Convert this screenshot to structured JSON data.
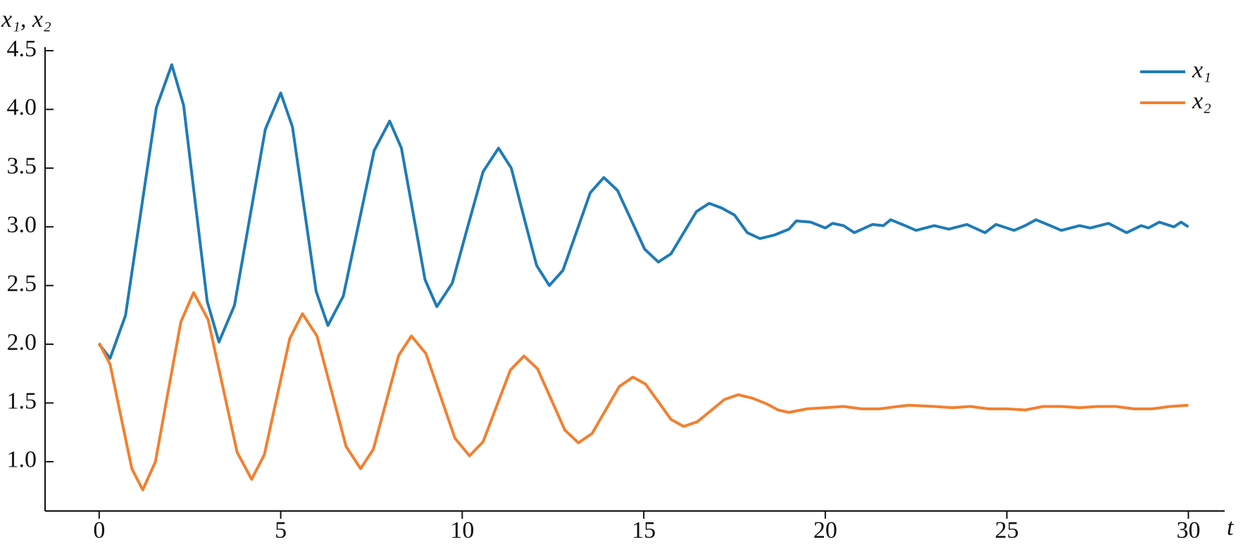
{
  "chart_data": {
    "type": "line",
    "ylabel": "x₁, x₂",
    "xlabel": "t",
    "xlim": [
      -1.49,
      31.0
    ],
    "ylim": [
      0.58,
      4.53
    ],
    "xticks": [
      0,
      5,
      10,
      15,
      20,
      25,
      30
    ],
    "yticks": [
      {
        "value": 1.0,
        "label": "1.0"
      },
      1.5,
      {
        "value": 2.0,
        "label": "2.0"
      },
      2.5,
      {
        "value": 3.0,
        "label": "3.0"
      },
      3.5,
      {
        "value": 4.0,
        "label": "4.0"
      },
      4.5
    ],
    "legend": "upper right",
    "series": [
      {
        "name": "x₁",
        "color": "#1f7bb6",
        "x": [
          0,
          0.3,
          0.725,
          1.15,
          1.575,
          2.0,
          2.325,
          2.65,
          2.975,
          3.3,
          3.725,
          4.15,
          4.575,
          5.0,
          5.325,
          5.65,
          5.975,
          6.3,
          6.725,
          7.15,
          7.575,
          8.0,
          8.325,
          8.65,
          8.975,
          9.3,
          9.725,
          10.15,
          10.575,
          11.0,
          11.35,
          11.7,
          12.05,
          12.4,
          12.775,
          13.15,
          13.525,
          13.9,
          14.275,
          14.65,
          15.025,
          15.4,
          15.75,
          16.1,
          16.45,
          16.8,
          17.15,
          17.5,
          17.85,
          18.2,
          18.6,
          19.0,
          19.2,
          19.6,
          20.0,
          20.2,
          20.5,
          20.8,
          21.3,
          21.6,
          21.8,
          22.2,
          22.5,
          23.0,
          23.4,
          23.9,
          24.4,
          24.7,
          25.2,
          25.5,
          25.8,
          26.2,
          26.5,
          27.0,
          27.3,
          27.8,
          28.3,
          28.7,
          28.9,
          29.2,
          29.6,
          29.8,
          30.0
        ],
        "values": [
          2.0,
          1.88,
          2.245,
          3.13,
          4.015,
          4.38,
          4.035,
          3.2,
          2.365,
          2.02,
          2.33,
          3.08,
          3.83,
          4.14,
          3.85,
          3.15,
          2.45,
          2.16,
          2.41,
          3.03,
          3.65,
          3.9,
          3.67,
          3.11,
          2.55,
          2.32,
          2.52,
          3.0,
          3.47,
          3.67,
          3.5,
          3.08,
          2.67,
          2.5,
          2.63,
          2.96,
          3.29,
          3.42,
          3.31,
          3.06,
          2.81,
          2.7,
          2.77,
          2.95,
          3.13,
          3.2,
          3.16,
          3.1,
          2.95,
          2.9,
          2.93,
          2.98,
          3.05,
          3.04,
          2.99,
          3.03,
          3.01,
          2.95,
          3.02,
          3.01,
          3.06,
          3.01,
          2.97,
          3.01,
          2.98,
          3.02,
          2.95,
          3.02,
          2.97,
          3.01,
          3.06,
          3.01,
          2.97,
          3.01,
          2.99,
          3.03,
          2.95,
          3.01,
          2.99,
          3.04,
          3.0,
          3.04,
          3.0
        ]
      },
      {
        "name": "x₂",
        "color": "#f28030",
        "x": [
          0,
          0.3,
          0.6,
          0.9,
          1.2,
          1.55,
          1.9,
          2.25,
          2.6,
          3.0,
          3.4,
          3.8,
          4.2,
          4.55,
          4.9,
          5.25,
          5.6,
          6.0,
          6.4,
          6.8,
          7.2,
          7.55,
          7.9,
          8.25,
          8.6,
          9.0,
          9.4,
          9.8,
          10.2,
          10.575,
          10.95,
          11.325,
          11.7,
          12.075,
          12.45,
          12.825,
          13.2,
          13.575,
          13.95,
          14.325,
          14.7,
          15.05,
          15.4,
          15.75,
          16.1,
          16.475,
          16.85,
          17.225,
          17.6,
          18.0,
          18.4,
          18.7,
          19.0,
          19.5,
          20.0,
          20.5,
          21.0,
          21.5,
          22.0,
          22.3,
          23.0,
          23.5,
          24.0,
          24.5,
          25.0,
          25.5,
          26.0,
          26.5,
          27.0,
          27.5,
          28.0,
          28.5,
          29.0,
          29.5,
          30.0
        ],
        "values": [
          2.01,
          1.83,
          1.385,
          0.94,
          0.76,
          1.0,
          1.6,
          2.19,
          2.44,
          2.21,
          1.645,
          1.08,
          0.85,
          1.06,
          1.555,
          2.05,
          2.26,
          2.07,
          1.6,
          1.13,
          0.94,
          1.105,
          1.505,
          1.905,
          2.07,
          1.92,
          1.56,
          1.2,
          1.05,
          1.17,
          1.475,
          1.78,
          1.9,
          1.79,
          1.53,
          1.27,
          1.16,
          1.24,
          1.44,
          1.64,
          1.72,
          1.66,
          1.51,
          1.36,
          1.3,
          1.34,
          1.435,
          1.53,
          1.57,
          1.54,
          1.49,
          1.44,
          1.42,
          1.45,
          1.46,
          1.47,
          1.45,
          1.45,
          1.47,
          1.48,
          1.47,
          1.46,
          1.47,
          1.45,
          1.45,
          1.44,
          1.47,
          1.47,
          1.46,
          1.47,
          1.47,
          1.45,
          1.45,
          1.47,
          1.48
        ]
      }
    ]
  }
}
